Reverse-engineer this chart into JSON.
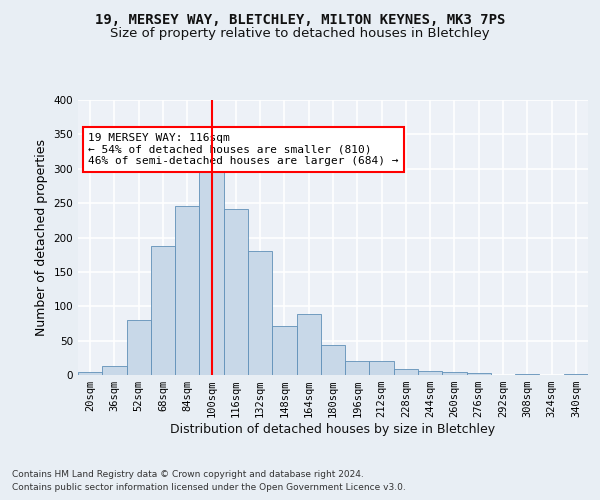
{
  "title_line1": "19, MERSEY WAY, BLETCHLEY, MILTON KEYNES, MK3 7PS",
  "title_line2": "Size of property relative to detached houses in Bletchley",
  "xlabel": "Distribution of detached houses by size in Bletchley",
  "ylabel": "Number of detached properties",
  "bar_labels": [
    "20sqm",
    "36sqm",
    "52sqm",
    "68sqm",
    "84sqm",
    "100sqm",
    "116sqm",
    "132sqm",
    "148sqm",
    "164sqm",
    "180sqm",
    "196sqm",
    "212sqm",
    "228sqm",
    "244sqm",
    "260sqm",
    "276sqm",
    "292sqm",
    "308sqm",
    "324sqm",
    "340sqm"
  ],
  "bar_values": [
    4,
    13,
    80,
    188,
    246,
    301,
    241,
    181,
    72,
    89,
    44,
    20,
    20,
    9,
    6,
    5,
    3,
    0,
    2,
    0,
    2
  ],
  "bar_color": "#c8d8e8",
  "bar_edge_color": "#6090b8",
  "property_line_x": 5,
  "bin_width": 1.0,
  "annotation_text": "19 MERSEY WAY: 116sqm\n← 54% of detached houses are smaller (810)\n46% of semi-detached houses are larger (684) →",
  "annotation_box_color": "white",
  "annotation_box_edge_color": "red",
  "line_color": "red",
  "ylim": [
    0,
    400
  ],
  "yticks": [
    0,
    50,
    100,
    150,
    200,
    250,
    300,
    350,
    400
  ],
  "footer_line1": "Contains HM Land Registry data © Crown copyright and database right 2024.",
  "footer_line2": "Contains public sector information licensed under the Open Government Licence v3.0.",
  "background_color": "#e8eef4",
  "plot_bg_color": "#edf1f7",
  "grid_color": "white",
  "title_fontsize": 10,
  "subtitle_fontsize": 9.5,
  "label_fontsize": 9,
  "tick_fontsize": 7.5,
  "footer_fontsize": 6.5,
  "annotation_fontsize": 8
}
